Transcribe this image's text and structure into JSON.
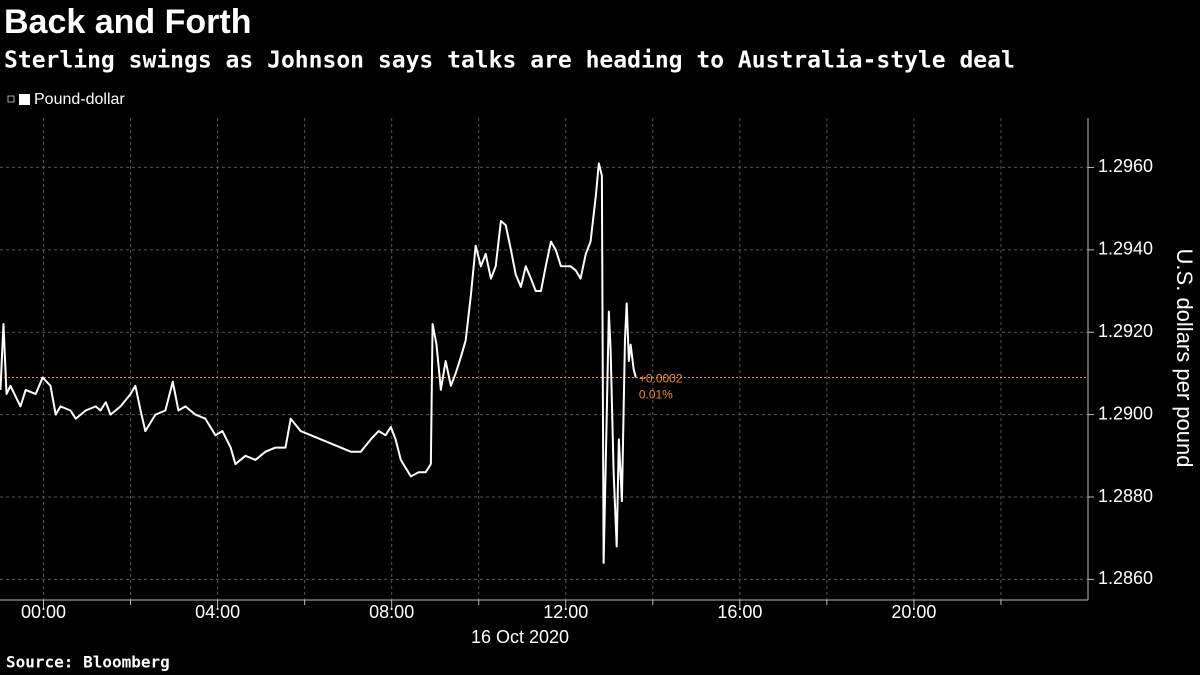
{
  "chart_data": {
    "type": "line",
    "title": "Back and Forth",
    "subtitle": "Sterling swings as Johnson says talks are heading to Australia-style deal",
    "y_label": "U.S. dollars per pound",
    "x_label": "16 Oct 2020",
    "source": "Source: Bloomberg",
    "xlim": [
      -1,
      24
    ],
    "ylim": [
      1.2855,
      1.2972
    ],
    "xticks": [
      {
        "value": 0,
        "label": "00:00"
      },
      {
        "value": 4,
        "label": "04:00"
      },
      {
        "value": 8,
        "label": "08:00"
      },
      {
        "value": 12,
        "label": "12:00"
      },
      {
        "value": 16,
        "label": "16:00"
      },
      {
        "value": 20,
        "label": "20:00"
      }
    ],
    "x_minor_ticks": [
      2,
      6,
      10,
      14,
      18,
      22
    ],
    "yticks": [
      {
        "value": 1.286,
        "label": "1.2860"
      },
      {
        "value": 1.288,
        "label": "1.2880"
      },
      {
        "value": 1.29,
        "label": "1.2900"
      },
      {
        "value": 1.292,
        "label": "1.2920"
      },
      {
        "value": 1.294,
        "label": "1.2940"
      },
      {
        "value": 1.296,
        "label": "1.2960"
      }
    ],
    "grid": true,
    "series": [
      {
        "name": "Pound-dollar",
        "color": "#ffffff",
        "x": [
          -0.99,
          -0.92,
          -0.85,
          -0.76,
          -0.53,
          -0.41,
          -0.18,
          -0.02,
          0.16,
          0.28,
          0.39,
          0.62,
          0.74,
          0.97,
          1.2,
          1.31,
          1.43,
          1.54,
          1.77,
          2.0,
          2.11,
          2.23,
          2.34,
          2.57,
          2.8,
          2.97,
          3.1,
          3.26,
          3.49,
          3.72,
          3.95,
          4.11,
          4.3,
          4.41,
          4.64,
          4.87,
          5.1,
          5.33,
          5.56,
          5.68,
          5.91,
          6.14,
          6.37,
          6.6,
          6.83,
          7.06,
          7.29,
          7.52,
          7.7,
          7.86,
          7.98,
          8.09,
          8.21,
          8.44,
          8.62,
          8.78,
          8.9,
          8.94,
          9.03,
          9.13,
          9.24,
          9.36,
          9.47,
          9.59,
          9.7,
          9.82,
          9.93,
          10.05,
          10.16,
          10.28,
          10.39,
          10.51,
          10.62,
          10.74,
          10.85,
          10.97,
          11.08,
          11.2,
          11.31,
          11.43,
          11.54,
          11.66,
          11.77,
          11.89,
          12.0,
          12.11,
          12.23,
          12.34,
          12.46,
          12.57,
          12.69,
          12.76,
          12.83,
          12.87,
          12.94,
          12.99,
          13.03,
          13.1,
          13.17,
          13.22,
          13.29,
          13.36,
          13.4,
          13.45,
          13.49,
          13.56,
          13.61
        ],
        "values": [
          1.2906,
          1.2922,
          1.2905,
          1.2907,
          1.2902,
          1.2906,
          1.2905,
          1.2909,
          1.2907,
          1.29,
          1.2902,
          1.2901,
          1.2899,
          1.2901,
          1.2902,
          1.2901,
          1.2903,
          1.29,
          1.2902,
          1.2905,
          1.2907,
          1.2901,
          1.2896,
          1.29,
          1.2901,
          1.2908,
          1.2901,
          1.2902,
          1.29,
          1.2899,
          1.2895,
          1.2896,
          1.2892,
          1.2888,
          1.289,
          1.2889,
          1.2891,
          1.2892,
          1.2892,
          1.2899,
          1.2896,
          1.2895,
          1.2894,
          1.2893,
          1.2892,
          1.2891,
          1.2891,
          1.2894,
          1.2896,
          1.2895,
          1.2897,
          1.2894,
          1.2889,
          1.2885,
          1.2886,
          1.2886,
          1.2888,
          1.2922,
          1.2917,
          1.2906,
          1.2913,
          1.2907,
          1.291,
          1.2914,
          1.2918,
          1.2929,
          1.2941,
          1.2936,
          1.2939,
          1.2933,
          1.2936,
          1.2947,
          1.2946,
          1.294,
          1.2934,
          1.2931,
          1.2936,
          1.2933,
          1.293,
          1.293,
          1.2936,
          1.2942,
          1.294,
          1.2936,
          1.2936,
          1.2936,
          1.2935,
          1.2933,
          1.2939,
          1.2942,
          1.2953,
          1.2961,
          1.2958,
          1.2864,
          1.2899,
          1.2925,
          1.2916,
          1.2886,
          1.2868,
          1.2894,
          1.2879,
          1.2918,
          1.2927,
          1.2913,
          1.2917,
          1.2911,
          1.2909
        ]
      }
    ],
    "reference_line": {
      "value": 1.2909,
      "color": "#f08c1e",
      "change_label": "+0.0002",
      "change_pct_label": "0.01%"
    }
  }
}
